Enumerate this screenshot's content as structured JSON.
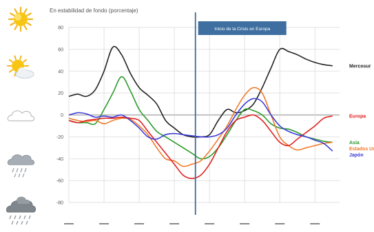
{
  "colors": {
    "background": "#ffffff",
    "grid": "#d9d9d9",
    "zero_line": "#9e9e9e",
    "event_line": "#3b6a9a",
    "event_box": "#3e6fa0",
    "axis_text": "#555555"
  },
  "weather_icons": [
    {
      "name": "sun-icon"
    },
    {
      "name": "sun-cloud-icon"
    },
    {
      "name": "cloud-icon"
    },
    {
      "name": "rain-cloud-icon"
    },
    {
      "name": "storm-cloud-icon"
    }
  ],
  "chart_data": {
    "type": "line",
    "subtitle": "En estabilidad de fondo (porcentaje)",
    "ylim": [
      -80,
      80
    ],
    "yticks": [
      80,
      60,
      40,
      20,
      0,
      -20,
      -40,
      -60,
      -80
    ],
    "xlim": [
      2005,
      2012.7
    ],
    "x": [
      2005.0,
      2005.25,
      2005.5,
      2005.75,
      2006.0,
      2006.25,
      2006.5,
      2006.75,
      2007.0,
      2007.25,
      2007.5,
      2007.75,
      2008.0,
      2008.25,
      2008.5,
      2008.75,
      2009.0,
      2009.25,
      2009.5,
      2009.75,
      2010.0,
      2010.25,
      2010.5,
      2010.75,
      2011.0,
      2011.25,
      2011.5,
      2011.75,
      2012.0,
      2012.25,
      2012.5
    ],
    "grid": true,
    "legend": "right",
    "event": {
      "x": 2008.6,
      "label": "Inicio de la Crisis en Europa"
    },
    "series": [
      {
        "name": "Mercosur",
        "color": "#222222",
        "values": [
          17,
          19,
          17,
          23,
          40,
          62,
          55,
          38,
          25,
          18,
          10,
          -5,
          -12,
          -18,
          -20,
          -20,
          -18,
          -5,
          5,
          2,
          4,
          10,
          25,
          43,
          60,
          58,
          55,
          51,
          48,
          46,
          45
        ]
      },
      {
        "name": "Asia",
        "color": "#2c9a2c",
        "values": [
          -5,
          -7,
          -7,
          -8,
          5,
          20,
          35,
          22,
          5,
          -5,
          -15,
          -20,
          -25,
          -30,
          -35,
          -40,
          -38,
          -30,
          -18,
          -5,
          5,
          4,
          0,
          -8,
          -12,
          -13,
          -16,
          -20,
          -22,
          -24,
          -25
        ]
      },
      {
        "name": "Estados Unidos",
        "color": "#f07a2a",
        "values": [
          -3,
          -5,
          -6,
          -5,
          -8,
          -5,
          -3,
          -4,
          -10,
          -18,
          -30,
          -40,
          -42,
          -47,
          -45,
          -42,
          -33,
          -22,
          -10,
          5,
          18,
          25,
          20,
          0,
          -20,
          -28,
          -32,
          -30,
          -28,
          -26,
          -25
        ]
      },
      {
        "name": "Europa",
        "color": "#e02020",
        "values": [
          -5,
          -7,
          -5,
          -4,
          -3,
          -3,
          -2,
          -3,
          -5,
          -15,
          -25,
          -35,
          -45,
          -55,
          -58,
          -55,
          -45,
          -30,
          -15,
          -5,
          -2,
          0,
          -5,
          -15,
          -25,
          -28,
          -22,
          -16,
          -10,
          -3,
          -1
        ]
      },
      {
        "name": "Japón",
        "color": "#3b3bd6",
        "values": [
          0,
          2,
          1,
          -2,
          -1,
          -2,
          0,
          -5,
          -12,
          -20,
          -22,
          -18,
          -17,
          -18,
          -19,
          -20,
          -20,
          -18,
          -12,
          0,
          10,
          15,
          12,
          0,
          -10,
          -15,
          -18,
          -20,
          -23,
          -26,
          -33
        ]
      }
    ]
  }
}
